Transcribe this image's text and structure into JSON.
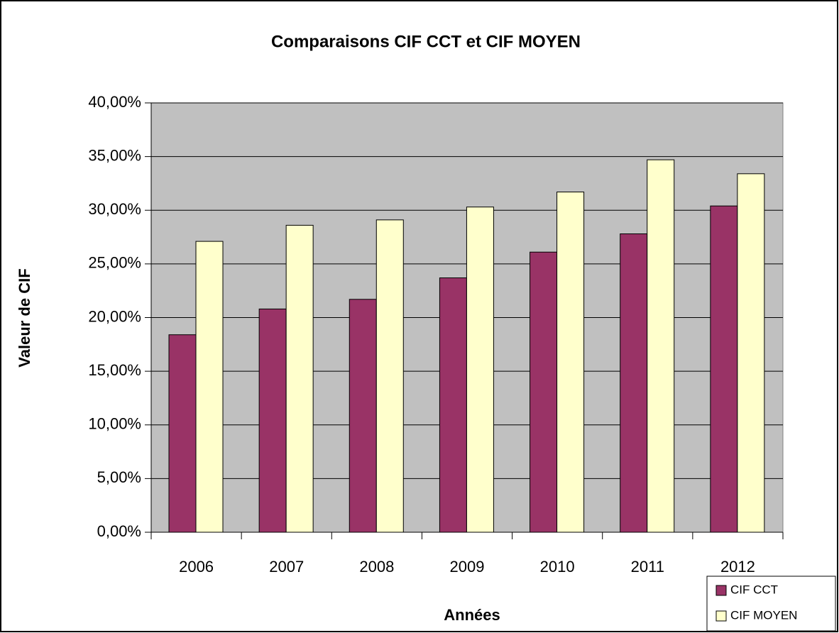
{
  "chart_data": {
    "type": "bar",
    "title": "Comparaisons CIF CCT et CIF MOYEN",
    "xlabel": "Années",
    "ylabel": "Valeur de CIF",
    "categories": [
      "2006",
      "2007",
      "2008",
      "2009",
      "2010",
      "2011",
      "2012"
    ],
    "series": [
      {
        "name": "CIF CCT",
        "color": "#993366",
        "values": [
          18.4,
          20.8,
          21.7,
          23.7,
          26.1,
          27.8,
          30.4
        ]
      },
      {
        "name": "CIF MOYEN",
        "color": "#FFFFCC",
        "values": [
          27.1,
          28.6,
          29.1,
          30.3,
          31.7,
          34.7,
          33.4
        ]
      }
    ],
    "ylim": [
      0,
      40
    ],
    "yticks": [
      {
        "value": 0,
        "label": "0,00%"
      },
      {
        "value": 5,
        "label": "5,00%"
      },
      {
        "value": 10,
        "label": "10,00%"
      },
      {
        "value": 15,
        "label": "15,00%"
      },
      {
        "value": 20,
        "label": "20,00%"
      },
      {
        "value": 25,
        "label": "25,00%"
      },
      {
        "value": 30,
        "label": "30,00%"
      },
      {
        "value": 35,
        "label": "35,00%"
      },
      {
        "value": 40,
        "label": "40,00%"
      }
    ],
    "grid": true,
    "plot_background": "#C0C0C0",
    "legend": "bottom-right"
  }
}
